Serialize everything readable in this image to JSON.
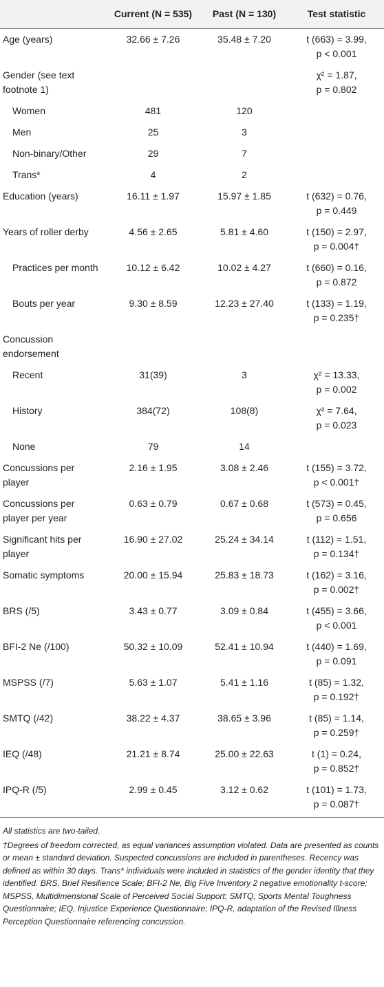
{
  "table": {
    "header": [
      "Current (N = 535)",
      "Past (N = 130)",
      "Test statistic"
    ],
    "rows": [
      [
        "Age (years)",
        "32.66 ± 7.26",
        "35.48 ± 7.20",
        [
          "t (663) = 3.99,",
          "p < 0.001"
        ]
      ],
      [
        "Gender (see text footnote 1)",
        null,
        null,
        [
          "χ² = 1.87,",
          "p = 0.802"
        ]
      ],
      [
        "Women",
        "481",
        "120",
        null
      ],
      [
        "Men",
        "25",
        "3",
        null
      ],
      [
        "Non-binary/Other",
        "29",
        "7",
        null
      ],
      [
        "Trans*",
        "4",
        "2",
        null
      ],
      [
        "Education (years)",
        "16.11 ± 1.97",
        "15.97 ± 1.85",
        [
          "t (632) = 0.76,",
          "p = 0.449"
        ]
      ],
      [
        "Years of roller derby",
        "4.56 ± 2.65",
        "5.81 ± 4.60",
        [
          "t (150) = 2.97,",
          "p = 0.004†"
        ]
      ],
      [
        "Practices per month",
        "10.12 ± 6.42",
        "10.02 ± 4.27",
        [
          "t (660) = 0.16,",
          "p = 0.872"
        ]
      ],
      [
        "Bouts per year",
        "9.30 ± 8.59",
        "12.23 ± 27.40",
        [
          "t (133) = 1.19,",
          "p = 0.235†"
        ]
      ],
      [
        "Concussion endorsement",
        null,
        null,
        null
      ],
      [
        "Recent",
        "31(39)",
        "3",
        [
          "χ² = 13.33,",
          "p = 0.002"
        ]
      ],
      [
        "History",
        "384(72)",
        "108(8)",
        [
          "χ² = 7.64,",
          "p = 0.023"
        ]
      ],
      [
        "None",
        "79",
        "14",
        null
      ],
      [
        "Concussions per player",
        "2.16 ± 1.95",
        "3.08 ± 2.46",
        [
          "t (155) = 3.72,",
          "p < 0.001†"
        ]
      ],
      [
        "Concussions per player per year",
        "0.63 ± 0.79",
        "0.67 ± 0.68",
        [
          "t (573) = 0.45,",
          "p = 0.656"
        ]
      ],
      [
        "Significant hits per player",
        "16.90 ± 27.02",
        "25.24 ± 34.14",
        [
          "t (112) = 1.51,",
          "p = 0.134†"
        ]
      ],
      [
        "Somatic symptoms",
        "20.00 ± 15.94",
        "25.83 ± 18.73",
        [
          "t (162) = 3.16,",
          "p = 0.002†"
        ]
      ],
      [
        "BRS (/5)",
        "3.43 ± 0.77",
        "3.09 ± 0.84",
        [
          "t (455) = 3.66,",
          "p < 0.001"
        ]
      ],
      [
        "BFI-2 Ne (/100)",
        "50.32 ± 10.09",
        "52.41 ± 10.94",
        [
          "t (440) = 1.69,",
          "p = 0.091"
        ]
      ],
      [
        "MSPSS (/7)",
        "5.63 ± 1.07",
        "5.41 ± 1.16",
        [
          "t (85) = 1.32,",
          "p = 0.192†"
        ]
      ],
      [
        "SMTQ (/42)",
        "38.22 ± 4.37",
        "38.65 ± 3.96",
        [
          "t (85) = 1.14,",
          "p = 0.259†"
        ]
      ],
      [
        "IEQ (/48)",
        "21.21 ± 8.74",
        "25.00 ± 22.63",
        [
          "t (1) = 0.24,",
          "p = 0.852†"
        ]
      ],
      [
        "IPQ-R (/5)",
        "2.99 ± 0.45",
        "3.12 ± 0.62",
        [
          "t (101) = 1.73,",
          "p = 0.087†"
        ]
      ]
    ]
  },
  "notes": [
    "All statistics are two-tailed.",
    "†Degrees of freedom corrected, as equal variances assumption violated. Data are presented as counts or mean ± standard deviation. Suspected concussions are included in parentheses. Recency was defined as within 30 days. Trans* individuals were included in statistics of the gender identity that they identified. BRS, Brief Resilience Scale; BFI-2 Ne, Big Five Inventory 2 negative emotionality t-score; MSPSS, Multidimensional Scale of Perceived Social Support; SMTQ, Sports Mental Toughness Questionnaire; IEQ, Injustice Experience Questionnaire; IPQ-R, adaptation of the Revised Illness Perception Questionnaire referencing concussion."
  ]
}
